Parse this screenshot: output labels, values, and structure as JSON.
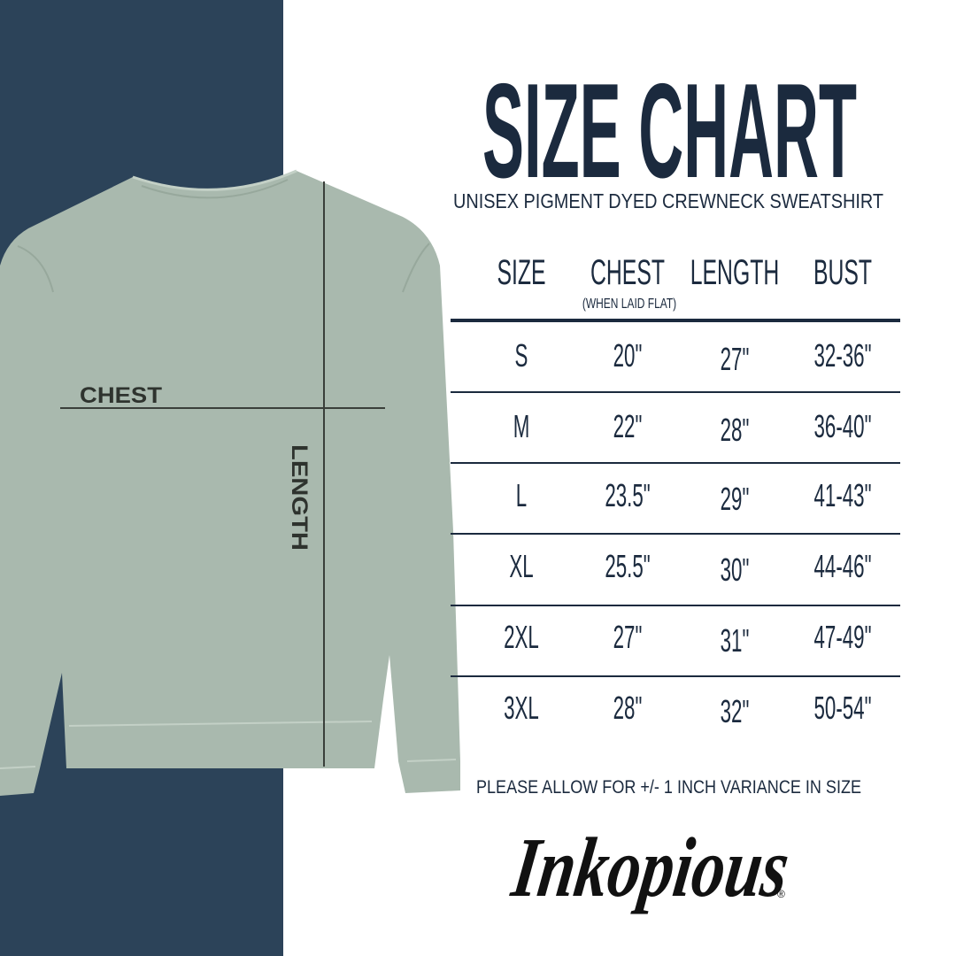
{
  "title": "SIZE CHART",
  "subtitle": "UNISEX PIGMENT DYED CREWNECK SWEATSHIRT",
  "diagram": {
    "chest_label": "CHEST",
    "length_label": "LENGTH"
  },
  "colors": {
    "navy_panel": "#2c4359",
    "text": "#1b2a3e",
    "garment": "#a9b9ae",
    "measure_line": "#3a3f3a"
  },
  "chart_data": {
    "type": "table",
    "columns": [
      "SIZE",
      "CHEST",
      "LENGTH",
      "BUST"
    ],
    "column_notes": {
      "CHEST": "(WHEN LAID FLAT)"
    },
    "rows": [
      [
        "S",
        "20\"",
        "27\"",
        "32-36\""
      ],
      [
        "M",
        "22\"",
        "28\"",
        "36-40\""
      ],
      [
        "L",
        "23.5\"",
        "29\"",
        "41-43\""
      ],
      [
        "XL",
        "25.5\"",
        "30\"",
        "44-46\""
      ],
      [
        "2XL",
        "27\"",
        "31\"",
        "47-49\""
      ],
      [
        "3XL",
        "28\"",
        "32\"",
        "50-54\""
      ]
    ]
  },
  "note": "PLEASE ALLOW FOR +/- 1 INCH VARIANCE IN SIZE",
  "logo": {
    "text": "Inkopious",
    "mark": "®"
  }
}
